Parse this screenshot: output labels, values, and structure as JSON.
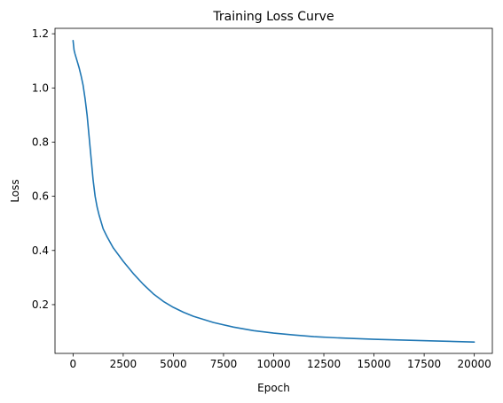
{
  "chart_data": {
    "type": "line",
    "title": "Training Loss Curve",
    "xlabel": "Epoch",
    "ylabel": "Loss",
    "xlim": [
      -900,
      20900
    ],
    "ylim": [
      0.02,
      1.22
    ],
    "xticks": [
      0,
      2500,
      5000,
      7500,
      10000,
      12500,
      15000,
      17500,
      20000
    ],
    "yticks": [
      0.2,
      0.4,
      0.6,
      0.8,
      1.0,
      1.2
    ],
    "ytick_labels": [
      "0.2",
      "0.4",
      "0.6",
      "0.8",
      "1.0",
      "1.2"
    ],
    "grid": false,
    "legend": "none",
    "series": [
      {
        "color": "#1f77b4",
        "x": [
          0,
          50,
          100,
          200,
          300,
          400,
          500,
          600,
          700,
          800,
          900,
          1000,
          1100,
          1200,
          1300,
          1500,
          1700,
          2000,
          2500,
          3000,
          3500,
          4000,
          4500,
          5000,
          5500,
          6000,
          7000,
          8000,
          9000,
          10000,
          11000,
          12000,
          13000,
          14000,
          15000,
          16000,
          17000,
          18000,
          19000,
          20000
        ],
        "y": [
          1.175,
          1.14,
          1.125,
          1.1,
          1.075,
          1.045,
          1.01,
          0.96,
          0.9,
          0.82,
          0.74,
          0.66,
          0.6,
          0.56,
          0.53,
          0.48,
          0.45,
          0.41,
          0.36,
          0.315,
          0.275,
          0.24,
          0.212,
          0.19,
          0.172,
          0.157,
          0.134,
          0.117,
          0.104,
          0.095,
          0.088,
          0.082,
          0.078,
          0.075,
          0.072,
          0.07,
          0.068,
          0.066,
          0.064,
          0.062
        ]
      }
    ]
  }
}
